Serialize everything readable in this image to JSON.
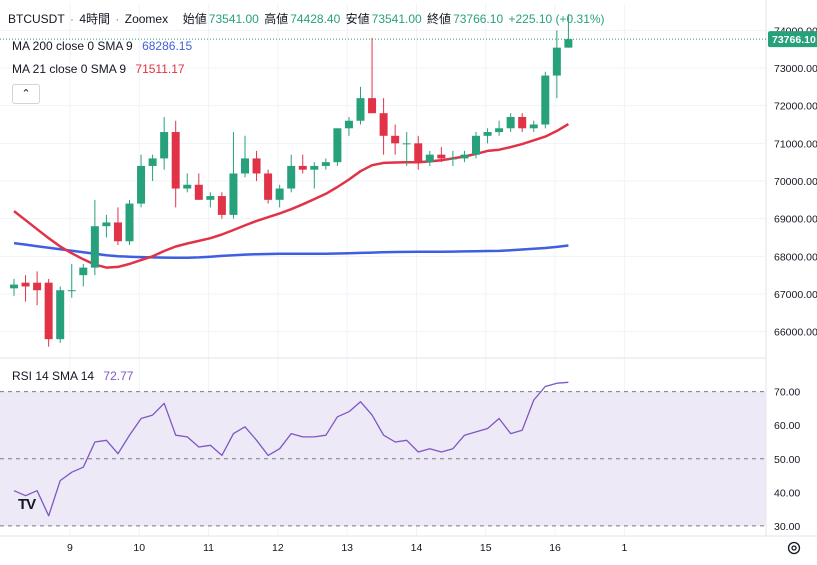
{
  "header": {
    "symbol": "BTCUSDT",
    "interval": "4時間",
    "exchange": "Zoomex",
    "open_label": "始値",
    "open_value": "73541.00",
    "high_label": "高値",
    "high_value": "74428.40",
    "low_label": "安値",
    "low_value": "73541.00",
    "close_label": "終値",
    "close_value": "73766.10",
    "change": "+225.10 (+0.31%)"
  },
  "indicators": {
    "ma200_label": "MA 200 close 0 SMA 9",
    "ma200_value": "68286.15",
    "ma21_label": "MA 21 close 0 SMA 9",
    "ma21_value": "71511.17",
    "rsi_label": "RSI 14 SMA 14",
    "rsi_value": "72.77"
  },
  "colors": {
    "up": "#26a17b",
    "down": "#e03347",
    "ma200": "#3f5ee0",
    "ma21": "#e03347",
    "rsi": "#7e57c2",
    "rsi_band": "#ede9f7",
    "price_tag": "#26a17b"
  },
  "chart_data": {
    "type": "candlestick",
    "title": "BTCUSDT · 4時間 · Zoomex",
    "current_price": 73766.1,
    "current_price_label": "73766.10",
    "ylim": [
      65300,
      74700
    ],
    "y_ticks": [
      "66000.00",
      "67000.00",
      "68000.00",
      "69000.00",
      "70000.00",
      "71000.00",
      "72000.00",
      "73000.00",
      "74000.00"
    ],
    "y_tick_values": [
      66000,
      67000,
      68000,
      69000,
      70000,
      71000,
      72000,
      73000,
      74000
    ],
    "x_day_labels": [
      "9",
      "10",
      "11",
      "12",
      "13",
      "14",
      "15",
      "16",
      "1"
    ],
    "x_day_start_index": [
      5,
      11,
      17,
      23,
      29,
      35,
      41,
      47,
      53
    ],
    "candles": [
      {
        "o": 67150,
        "h": 67400,
        "l": 66950,
        "c": 67250
      },
      {
        "o": 67300,
        "h": 67500,
        "l": 66800,
        "c": 67200
      },
      {
        "o": 67300,
        "h": 67600,
        "l": 66700,
        "c": 67100
      },
      {
        "o": 67300,
        "h": 67400,
        "l": 65600,
        "c": 65800
      },
      {
        "o": 65800,
        "h": 67200,
        "l": 65700,
        "c": 67100
      },
      {
        "o": 67100,
        "h": 67800,
        "l": 66900,
        "c": 67100
      },
      {
        "o": 67500,
        "h": 67800,
        "l": 67200,
        "c": 67700
      },
      {
        "o": 67700,
        "h": 69500,
        "l": 67500,
        "c": 68800
      },
      {
        "o": 68800,
        "h": 69100,
        "l": 68500,
        "c": 68900
      },
      {
        "o": 68900,
        "h": 69300,
        "l": 68300,
        "c": 68400
      },
      {
        "o": 68400,
        "h": 69500,
        "l": 68300,
        "c": 69400
      },
      {
        "o": 69400,
        "h": 70700,
        "l": 69300,
        "c": 70400
      },
      {
        "o": 70400,
        "h": 70700,
        "l": 70000,
        "c": 70600
      },
      {
        "o": 70600,
        "h": 71700,
        "l": 70300,
        "c": 71300
      },
      {
        "o": 71300,
        "h": 71600,
        "l": 69300,
        "c": 69800
      },
      {
        "o": 69800,
        "h": 70200,
        "l": 69700,
        "c": 69900
      },
      {
        "o": 69900,
        "h": 70200,
        "l": 69500,
        "c": 69500
      },
      {
        "o": 69500,
        "h": 69700,
        "l": 69300,
        "c": 69600
      },
      {
        "o": 69600,
        "h": 69700,
        "l": 69000,
        "c": 69100
      },
      {
        "o": 69100,
        "h": 71300,
        "l": 69000,
        "c": 70200
      },
      {
        "o": 70200,
        "h": 71200,
        "l": 70100,
        "c": 70600
      },
      {
        "o": 70600,
        "h": 70800,
        "l": 70000,
        "c": 70200
      },
      {
        "o": 70200,
        "h": 70300,
        "l": 69400,
        "c": 69500
      },
      {
        "o": 69500,
        "h": 69900,
        "l": 69300,
        "c": 69800
      },
      {
        "o": 69800,
        "h": 70700,
        "l": 69700,
        "c": 70400
      },
      {
        "o": 70400,
        "h": 70700,
        "l": 70200,
        "c": 70300
      },
      {
        "o": 70300,
        "h": 70500,
        "l": 69800,
        "c": 70400
      },
      {
        "o": 70400,
        "h": 70600,
        "l": 70300,
        "c": 70500
      },
      {
        "o": 70500,
        "h": 71400,
        "l": 70400,
        "c": 71400
      },
      {
        "o": 71400,
        "h": 71700,
        "l": 71200,
        "c": 71600
      },
      {
        "o": 71600,
        "h": 72500,
        "l": 71500,
        "c": 72200
      },
      {
        "o": 72200,
        "h": 73800,
        "l": 71800,
        "c": 71800
      },
      {
        "o": 71800,
        "h": 72200,
        "l": 70700,
        "c": 71200
      },
      {
        "o": 71200,
        "h": 71500,
        "l": 70700,
        "c": 71000
      },
      {
        "o": 71000,
        "h": 71300,
        "l": 70400,
        "c": 71000
      },
      {
        "o": 71000,
        "h": 71200,
        "l": 70300,
        "c": 70500
      },
      {
        "o": 70500,
        "h": 70800,
        "l": 70400,
        "c": 70700
      },
      {
        "o": 70700,
        "h": 70900,
        "l": 70500,
        "c": 70600
      },
      {
        "o": 70600,
        "h": 70800,
        "l": 70400,
        "c": 70600
      },
      {
        "o": 70600,
        "h": 70800,
        "l": 70500,
        "c": 70700
      },
      {
        "o": 70700,
        "h": 71300,
        "l": 70600,
        "c": 71200
      },
      {
        "o": 71200,
        "h": 71400,
        "l": 71000,
        "c": 71300
      },
      {
        "o": 71300,
        "h": 71600,
        "l": 71200,
        "c": 71400
      },
      {
        "o": 71400,
        "h": 71800,
        "l": 71300,
        "c": 71700
      },
      {
        "o": 71700,
        "h": 71800,
        "l": 71300,
        "c": 71400
      },
      {
        "o": 71400,
        "h": 71600,
        "l": 71300,
        "c": 71500
      },
      {
        "o": 71500,
        "h": 72900,
        "l": 71400,
        "c": 72800
      },
      {
        "o": 72800,
        "h": 74000,
        "l": 72200,
        "c": 73541
      },
      {
        "o": 73541,
        "h": 74428.4,
        "l": 73541,
        "c": 73766.1
      }
    ],
    "series": [
      {
        "name": "MA 200 close 0 SMA 9",
        "values": [
          68350,
          68310,
          68270,
          68230,
          68190,
          68150,
          68110,
          68070,
          68030,
          68000,
          67990,
          67980,
          67970,
          67965,
          67960,
          67960,
          67970,
          67990,
          68010,
          68030,
          68045,
          68055,
          68062,
          68066,
          68068,
          68068,
          68068,
          68070,
          68075,
          68080,
          68090,
          68100,
          68110,
          68115,
          68118,
          68120,
          68120,
          68122,
          68125,
          68130,
          68135,
          68140,
          68145,
          68160,
          68180,
          68200,
          68220,
          68250,
          68286
        ]
      },
      {
        "name": "MA 21 close 0 SMA 9",
        "values": [
          69200,
          68960,
          68720,
          68480,
          68260,
          68080,
          67920,
          67780,
          67700,
          67720,
          67800,
          67900,
          68000,
          68140,
          68260,
          68340,
          68410,
          68480,
          68580,
          68700,
          68820,
          68940,
          69040,
          69140,
          69250,
          69380,
          69520,
          69660,
          69840,
          70040,
          70260,
          70420,
          70480,
          70490,
          70500,
          70500,
          70520,
          70550,
          70600,
          70650,
          70720,
          70800,
          70830,
          70900,
          70980,
          71080,
          71180,
          71330,
          71511
        ]
      }
    ],
    "rsi": {
      "label": "RSI 14 SMA 14",
      "ylim": [
        27,
        80
      ],
      "upper": 70,
      "middle": 50,
      "lower": 30,
      "y_ticks": [
        "30.00",
        "40.00",
        "50.00",
        "60.00",
        "70.00"
      ],
      "y_tick_values": [
        30,
        40,
        50,
        60,
        70
      ],
      "values": [
        40.5,
        39.0,
        40.5,
        33.0,
        43.5,
        46.0,
        47.5,
        55.0,
        55.5,
        51.5,
        57.0,
        62.0,
        63.0,
        66.5,
        57.0,
        56.5,
        53.5,
        54.0,
        51.0,
        57.5,
        59.5,
        55.5,
        51.0,
        53.0,
        57.5,
        56.5,
        56.5,
        57.0,
        62.5,
        64.0,
        67.0,
        63.0,
        57.0,
        55.0,
        55.5,
        52.0,
        53.0,
        52.0,
        53.0,
        57.0,
        58.0,
        59.0,
        62.0,
        57.5,
        58.5,
        67.5,
        71.5,
        72.5,
        72.77
      ]
    }
  }
}
